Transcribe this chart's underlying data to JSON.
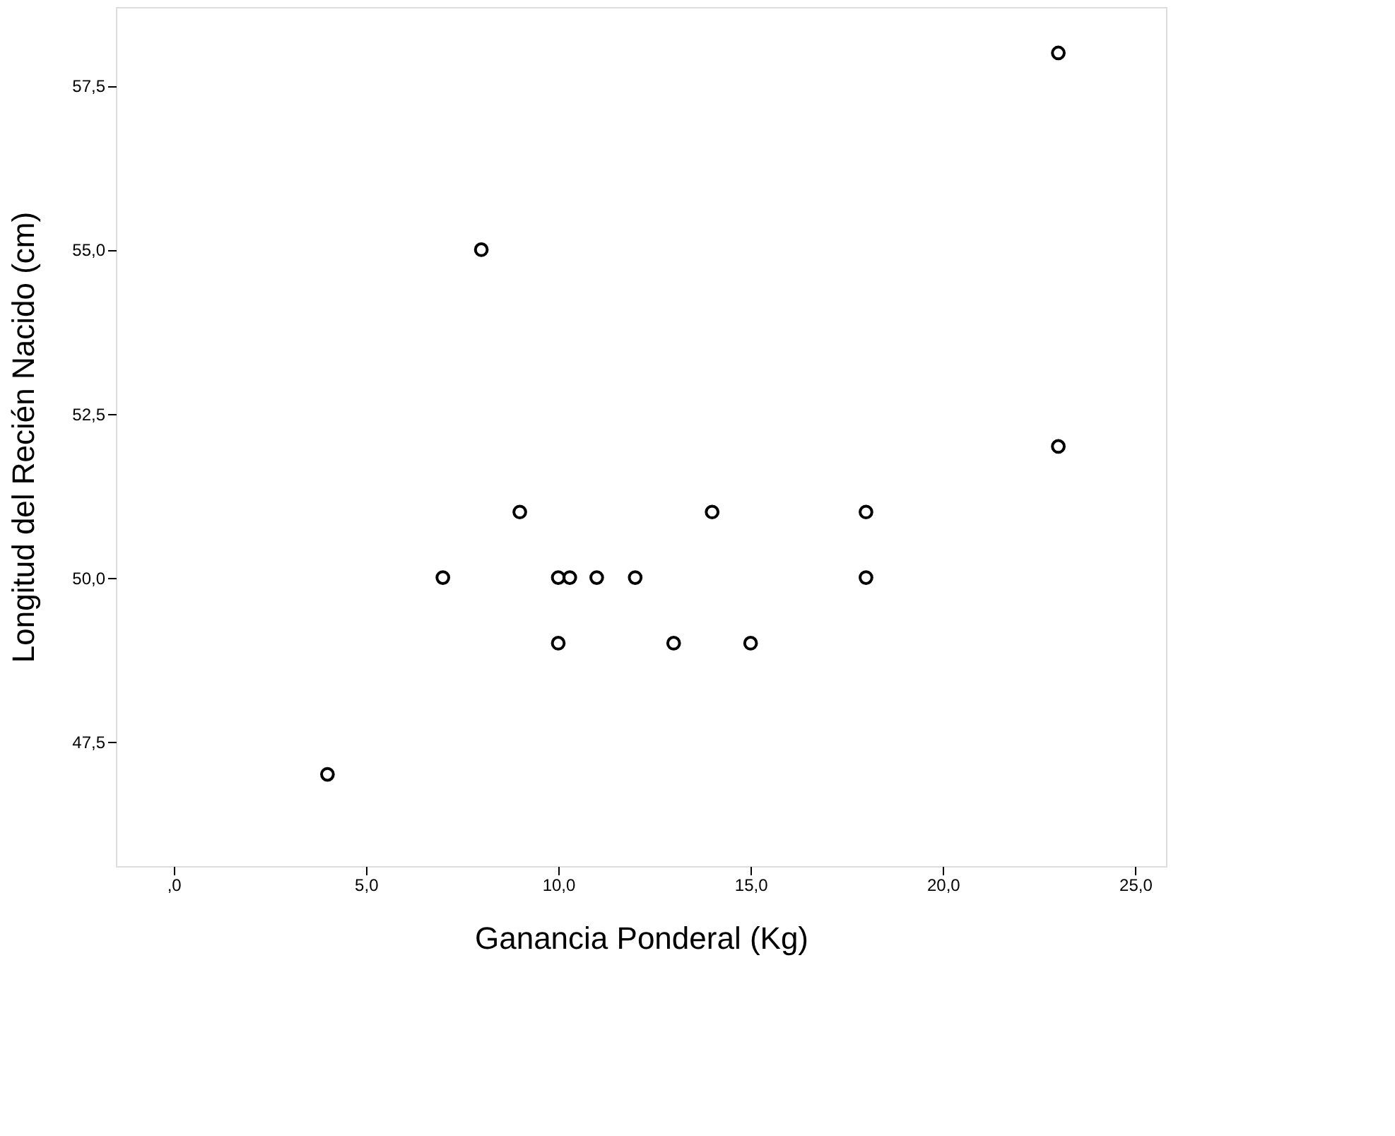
{
  "chart_data": {
    "type": "scatter",
    "xlabel": "Ganancia Ponderal (Kg)",
    "ylabel": "Longitud del Recién Nacido (cm)",
    "series": [
      {
        "color": "#000000",
        "x": [
          4,
          7,
          8,
          9,
          10,
          10.3,
          11,
          12,
          10,
          13,
          14,
          15,
          18,
          18,
          23,
          23
        ],
        "values": [
          47,
          50,
          55,
          51,
          50,
          50,
          50,
          50,
          49,
          49,
          51,
          49,
          51,
          50,
          58,
          52
        ]
      }
    ],
    "xlim": [
      -1.5,
      25.8
    ],
    "ylim": [
      45.6,
      58.7
    ],
    "xticks": [
      {
        "value": 0,
        "label": ",0"
      },
      {
        "value": 5,
        "label": "5,0"
      },
      {
        "value": 10,
        "label": "10,0"
      },
      {
        "value": 15,
        "label": "15,0"
      },
      {
        "value": 20,
        "label": "20,0"
      },
      {
        "value": 25,
        "label": "25,0"
      }
    ],
    "yticks": [
      {
        "value": 47.5,
        "label": "47,5"
      },
      {
        "value": 50,
        "label": "50,0"
      },
      {
        "value": 52.5,
        "label": "52,5"
      },
      {
        "value": 55,
        "label": "55,0"
      },
      {
        "value": 57.5,
        "label": "57,5"
      }
    ],
    "marker": "circle"
  }
}
